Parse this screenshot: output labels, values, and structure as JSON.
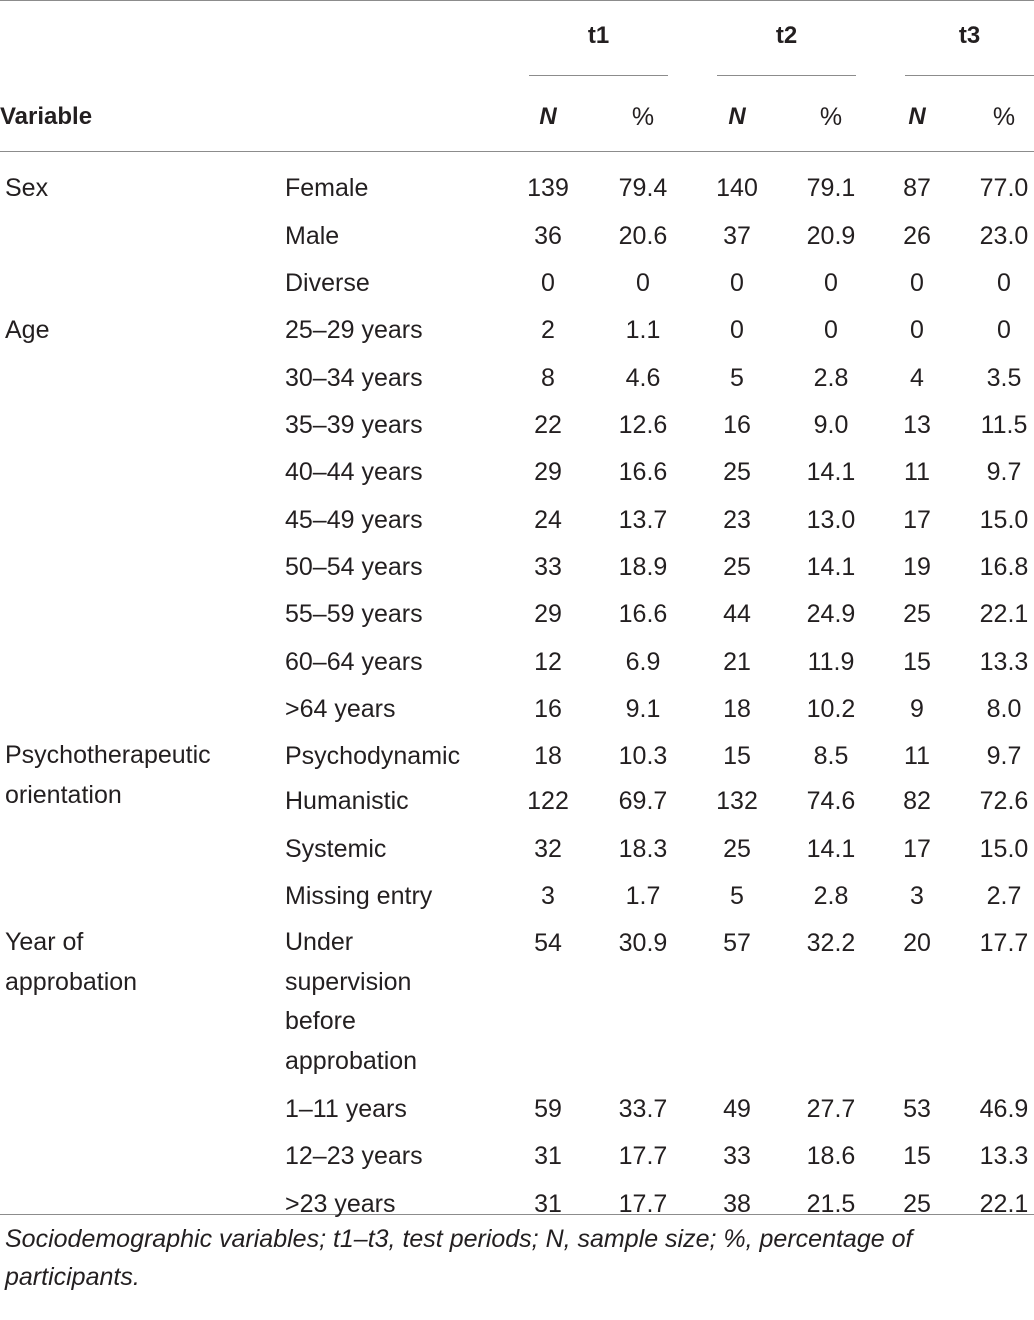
{
  "table": {
    "group_headers": [
      "t1",
      "t2",
      "t3"
    ],
    "variable_header": "Variable",
    "sub_headers": [
      "N",
      "%",
      "N",
      "%",
      "N",
      "%"
    ],
    "groups": [
      {
        "variable": "Sex",
        "rows": [
          {
            "label": "Female",
            "values": [
              "139",
              "79.4",
              "140",
              "79.1",
              "87",
              "77.0"
            ]
          },
          {
            "label": "Male",
            "values": [
              "36",
              "20.6",
              "37",
              "20.9",
              "26",
              "23.0"
            ]
          },
          {
            "label": "Diverse",
            "values": [
              "0",
              "0",
              "0",
              "0",
              "0",
              "0"
            ]
          }
        ]
      },
      {
        "variable": "Age",
        "rows": [
          {
            "label": "25–29 years",
            "values": [
              "2",
              "1.1",
              "0",
              "0",
              "0",
              "0"
            ]
          },
          {
            "label": "30–34 years",
            "values": [
              "8",
              "4.6",
              "5",
              "2.8",
              "4",
              "3.5"
            ]
          },
          {
            "label": "35–39 years",
            "values": [
              "22",
              "12.6",
              "16",
              "9.0",
              "13",
              "11.5"
            ]
          },
          {
            "label": "40–44 years",
            "values": [
              "29",
              "16.6",
              "25",
              "14.1",
              "11",
              "9.7"
            ]
          },
          {
            "label": "45–49 years",
            "values": [
              "24",
              "13.7",
              "23",
              "13.0",
              "17",
              "15.0"
            ]
          },
          {
            "label": "50–54 years",
            "values": [
              "33",
              "18.9",
              "25",
              "14.1",
              "19",
              "16.8"
            ]
          },
          {
            "label": "55–59 years",
            "values": [
              "29",
              "16.6",
              "44",
              "24.9",
              "25",
              "22.1"
            ]
          },
          {
            "label": "60–64 years",
            "values": [
              "12",
              "6.9",
              "21",
              "11.9",
              "15",
              "13.3"
            ]
          },
          {
            "label": ">64 years",
            "values": [
              "16",
              "9.1",
              "18",
              "10.2",
              "9",
              "8.0"
            ]
          }
        ]
      },
      {
        "variable": "Psychotherapeutic orientation",
        "variable_lines": [
          "Psychotherapeutic",
          "orientation"
        ],
        "rows": [
          {
            "label": "Psychodynamic",
            "values": [
              "18",
              "10.3",
              "15",
              "8.5",
              "11",
              "9.7"
            ]
          },
          {
            "label": "Humanistic",
            "values": [
              "122",
              "69.7",
              "132",
              "74.6",
              "82",
              "72.6"
            ]
          },
          {
            "label": "Systemic",
            "values": [
              "32",
              "18.3",
              "25",
              "14.1",
              "17",
              "15.0"
            ]
          },
          {
            "label": "Missing entry",
            "values": [
              "3",
              "1.7",
              "5",
              "2.8",
              "3",
              "2.7"
            ]
          }
        ]
      },
      {
        "variable": "Year of approbation",
        "variable_lines": [
          "Year of",
          "approbation"
        ],
        "rows": [
          {
            "label": "Under supervision before approbation",
            "label_lines": [
              "Under",
              "supervision",
              "before",
              "approbation"
            ],
            "values": [
              "54",
              "30.9",
              "57",
              "32.2",
              "20",
              "17.7"
            ]
          },
          {
            "label": "1–11 years",
            "values": [
              "59",
              "33.7",
              "49",
              "27.7",
              "53",
              "46.9"
            ]
          },
          {
            "label": "12–23 years",
            "values": [
              "31",
              "17.7",
              "33",
              "18.6",
              "15",
              "13.3"
            ]
          },
          {
            "label": ">23 years",
            "values": [
              "31",
              "17.7",
              "38",
              "21.5",
              "25",
              "22.1"
            ]
          }
        ]
      }
    ]
  },
  "footnote": "Sociodemographic variables; t1–t3, test periods; N, sample size; %, percentage of participants."
}
